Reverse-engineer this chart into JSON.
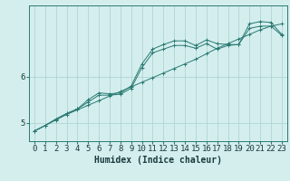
{
  "xlabel": "Humidex (Indice chaleur)",
  "ylabel": "",
  "background_color": "#d4eeee",
  "grid_color": "#aed4d4",
  "line_color": "#2a7a72",
  "xlim": [
    -0.5,
    23.5
  ],
  "ylim": [
    4.6,
    7.55
  ],
  "yticks": [
    5,
    6
  ],
  "xticks": [
    0,
    1,
    2,
    3,
    4,
    5,
    6,
    7,
    8,
    9,
    10,
    11,
    12,
    13,
    14,
    15,
    16,
    17,
    18,
    19,
    20,
    21,
    22,
    23
  ],
  "series": [
    {
      "x": [
        0,
        1,
        2,
        3,
        4,
        5,
        6,
        7,
        8,
        9,
        10,
        11,
        12,
        13,
        14,
        15,
        16,
        17,
        18,
        19,
        20,
        21,
        22,
        23
      ],
      "y": [
        4.82,
        4.94,
        5.06,
        5.18,
        5.28,
        5.38,
        5.48,
        5.58,
        5.68,
        5.78,
        5.88,
        5.98,
        6.08,
        6.18,
        6.28,
        6.38,
        6.5,
        6.62,
        6.72,
        6.82,
        6.92,
        7.02,
        7.1,
        7.15
      ],
      "marker": "+"
    },
    {
      "x": [
        0,
        1,
        2,
        3,
        4,
        5,
        6,
        7,
        8,
        9,
        10,
        11,
        12,
        13,
        14,
        15,
        16,
        17,
        18,
        19,
        20,
        21,
        22,
        23
      ],
      "y": [
        4.82,
        4.94,
        5.08,
        5.2,
        5.3,
        5.45,
        5.6,
        5.6,
        5.62,
        5.75,
        6.2,
        6.52,
        6.6,
        6.68,
        6.68,
        6.62,
        6.72,
        6.6,
        6.68,
        6.7,
        7.05,
        7.1,
        7.1,
        6.9
      ],
      "marker": "+"
    },
    {
      "x": [
        0,
        1,
        2,
        3,
        4,
        5,
        6,
        7,
        8,
        9,
        10,
        11,
        12,
        13,
        14,
        15,
        16,
        17,
        18,
        19,
        20,
        21,
        22,
        23
      ],
      "y": [
        4.82,
        4.94,
        5.08,
        5.2,
        5.3,
        5.5,
        5.65,
        5.63,
        5.65,
        5.8,
        6.28,
        6.6,
        6.7,
        6.78,
        6.78,
        6.68,
        6.8,
        6.72,
        6.7,
        6.7,
        7.15,
        7.2,
        7.18,
        6.92
      ],
      "marker": "+"
    }
  ],
  "title_fontsize": 8,
  "axis_fontsize": 7,
  "tick_fontsize": 6.5
}
